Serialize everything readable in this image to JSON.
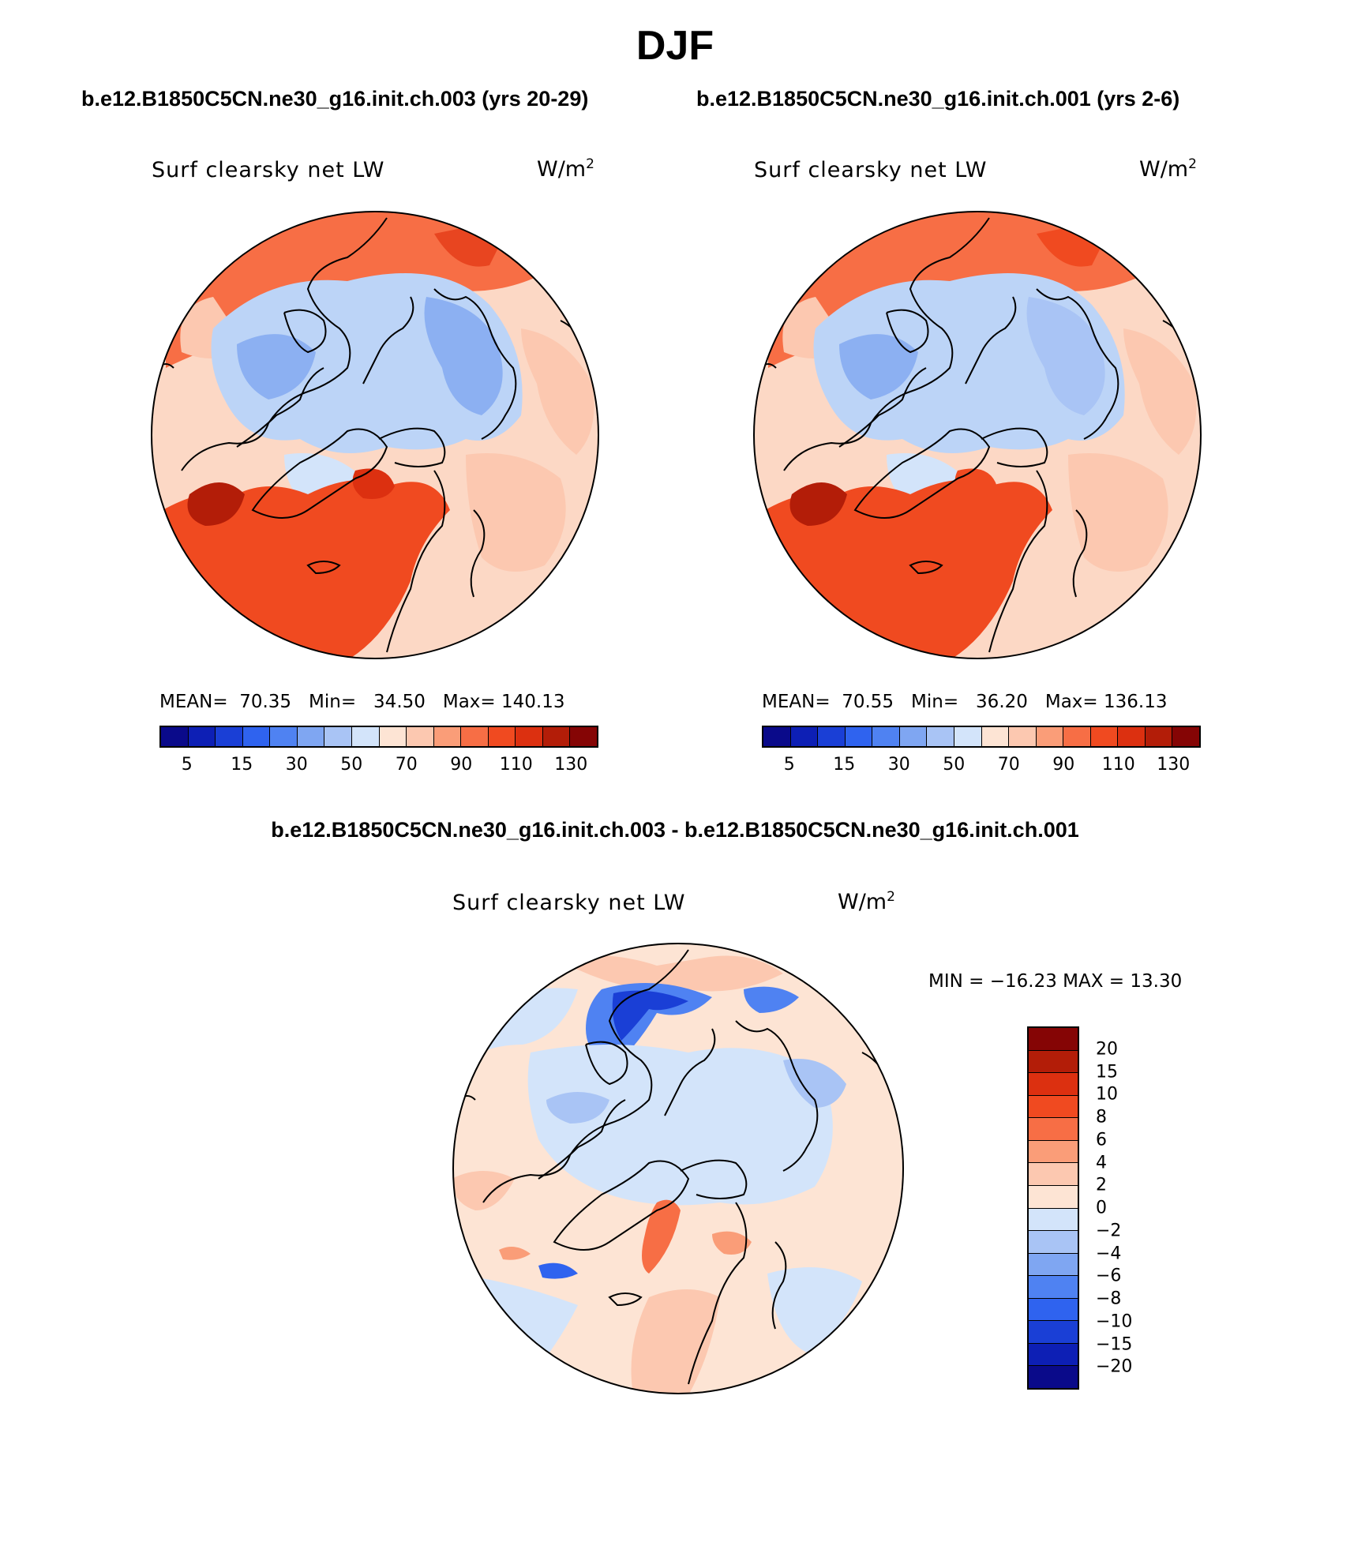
{
  "figure": {
    "title": "DJF",
    "left_run": "b.e12.B1850C5CN.ne30_g16.init.ch.003 (yrs 20-29)",
    "right_run": "b.e12.B1850C5CN.ne30_g16.init.ch.001 (yrs 2-6)",
    "diff_title": "b.e12.B1850C5CN.ne30_g16.init.ch.003 - b.e12.B1850C5CN.ne30_g16.init.ch.001"
  },
  "panels": {
    "left": {
      "variable": "Surf clearsky net LW",
      "unit_base": "W/m",
      "unit_exp": "2",
      "mean_label": "MEAN=",
      "mean": "70.35",
      "min_label": "Min=",
      "min": "34.50",
      "max_label": "Max=",
      "max": "140.13"
    },
    "right": {
      "variable": "Surf clearsky net LW",
      "unit_base": "W/m",
      "unit_exp": "2",
      "mean_label": "MEAN=",
      "mean": "70.55",
      "min_label": "Min=",
      "min": "36.20",
      "max_label": "Max=",
      "max": "136.13"
    },
    "diff": {
      "variable": "Surf clearsky net LW",
      "unit_base": "W/m",
      "unit_exp": "2",
      "minmax": "MIN = −16.23 MAX =   13.30"
    }
  },
  "colorbars": {
    "abs_ticks": [
      "5",
      "15",
      "30",
      "50",
      "70",
      "90",
      "110",
      "130"
    ],
    "abs_colors": [
      "#0a0a8a",
      "#0d1fb5",
      "#1a3fd6",
      "#2f63ef",
      "#4f82f2",
      "#7fa6f2",
      "#a9c4f5",
      "#d3e4fa",
      "#fde4d4",
      "#fcc8b0",
      "#fa9d78",
      "#f76e45",
      "#f04a20",
      "#dc3010",
      "#b31d08",
      "#850505"
    ],
    "diff_ticks": [
      "20",
      "15",
      "10",
      "8",
      "6",
      "4",
      "2",
      "0",
      "−2",
      "−4",
      "−6",
      "−8",
      "−10",
      "−15",
      "−20"
    ],
    "diff_colors": [
      "#850505",
      "#b31d08",
      "#dc3010",
      "#f04a20",
      "#f76e45",
      "#fa9d78",
      "#fcc8b0",
      "#fde4d4",
      "#d3e4fa",
      "#a9c4f5",
      "#7fa6f2",
      "#4f82f2",
      "#2f63ef",
      "#1a3fd6",
      "#0d1fb5",
      "#0a0a8a"
    ]
  }
}
